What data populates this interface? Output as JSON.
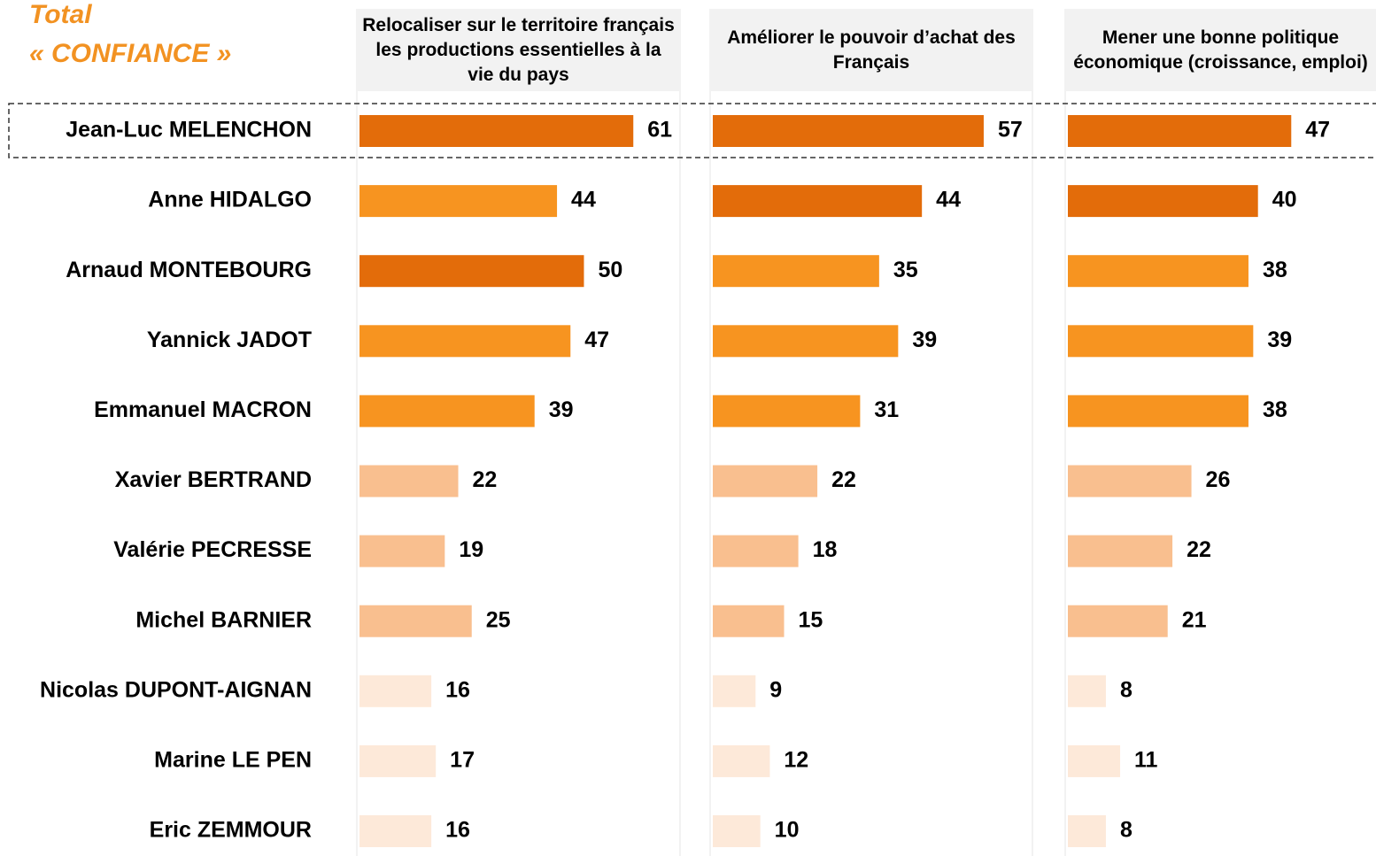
{
  "chart_data": {
    "type": "bar",
    "orientation": "horizontal",
    "title": [
      "Total",
      "« CONFIANCE »"
    ],
    "categories": [
      "Jean-Luc MELENCHON",
      "Anne HIDALGO",
      "Arnaud MONTEBOURG",
      "Yannick JADOT",
      "Emmanuel MACRON",
      "Xavier BERTRAND",
      "Valérie PECRESSE",
      "Michel BARNIER",
      "Nicolas DUPONT-AIGNAN",
      "Marine LE PEN",
      "Eric ZEMMOUR"
    ],
    "series": [
      {
        "name": "Relocaliser sur le territoire français les productions essentielles à la vie du pays",
        "xlim": [
          0,
          72
        ],
        "values": [
          61,
          44,
          50,
          47,
          39,
          22,
          19,
          25,
          16,
          17,
          16
        ],
        "colors": [
          "#e36c0a",
          "#f79420",
          "#e36c0a",
          "#f79420",
          "#f79420",
          "#f9bf8f",
          "#f9bf8f",
          "#f9bf8f",
          "#fde9d9",
          "#fde9d9",
          "#fde9d9"
        ]
      },
      {
        "name": "Améliorer le pouvoir d’achat des Français",
        "xlim": [
          0,
          68
        ],
        "values": [
          57,
          44,
          35,
          39,
          31,
          22,
          18,
          15,
          9,
          12,
          10
        ],
        "colors": [
          "#e36c0a",
          "#e36c0a",
          "#f79420",
          "#f79420",
          "#f79420",
          "#f9bf8f",
          "#f9bf8f",
          "#f9bf8f",
          "#fde9d9",
          "#fde9d9",
          "#fde9d9"
        ]
      },
      {
        "name": "Mener une bonne politique économique (croissance, emploi)",
        "xlim": [
          0,
          68
        ],
        "values": [
          47,
          40,
          38,
          39,
          38,
          26,
          22,
          21,
          8,
          11,
          8
        ],
        "colors": [
          "#e36c0a",
          "#e36c0a",
          "#f79420",
          "#f79420",
          "#f79420",
          "#f9bf8f",
          "#f9bf8f",
          "#f9bf8f",
          "#fde9d9",
          "#fde9d9",
          "#fde9d9"
        ]
      }
    ]
  }
}
